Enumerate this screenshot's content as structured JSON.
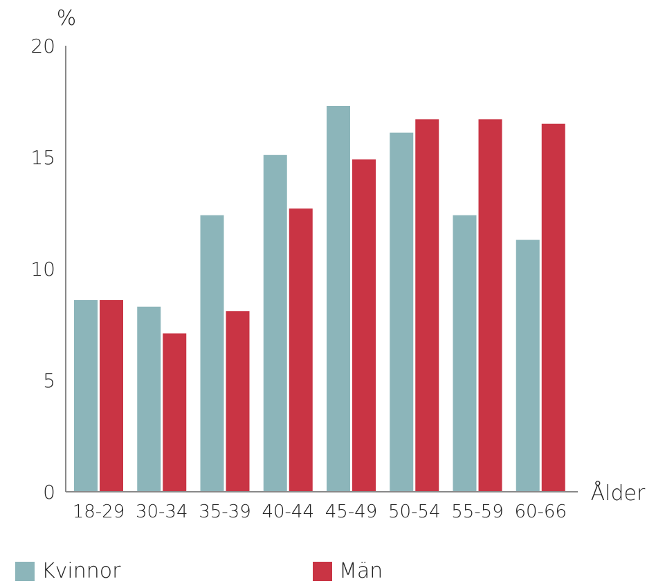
{
  "chart_data": {
    "type": "bar",
    "ylabel": "%",
    "xlabel": "Ålder",
    "ylim": [
      0,
      20
    ],
    "yticks": [
      0,
      5,
      10,
      15,
      20
    ],
    "categories": [
      "18-29",
      "30-34",
      "35-39",
      "40-44",
      "45-49",
      "50-54",
      "55-59",
      "60-66"
    ],
    "series": [
      {
        "name": "Kvinnor",
        "color": "#8cb5ba",
        "values": [
          8.6,
          8.3,
          12.4,
          15.1,
          17.3,
          16.1,
          12.4,
          11.3
        ]
      },
      {
        "name": "Män",
        "color": "#c93444",
        "values": [
          8.6,
          7.1,
          8.1,
          12.7,
          14.9,
          16.7,
          16.7,
          16.5
        ]
      }
    ],
    "legend": "bottom",
    "grid": false
  }
}
